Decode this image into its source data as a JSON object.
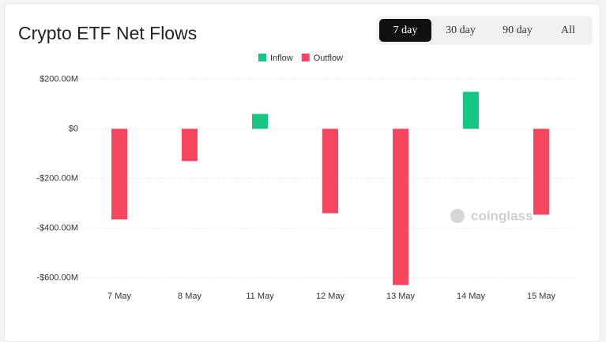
{
  "chart_data": {
    "type": "bar",
    "title": "Crypto ETF Net Flows",
    "buttons": [
      "7 day",
      "30 day",
      "90 day",
      "All"
    ],
    "active_button": 0,
    "watermark": "coinglass",
    "categories": [
      "7 May",
      "8 May",
      "11 May",
      "12 May",
      "13 May",
      "14 May",
      "15 May"
    ],
    "series": [
      {
        "name": "Inflow",
        "color": "#16c784",
        "values": [
          null,
          null,
          60000000,
          null,
          null,
          149000000,
          null
        ]
      },
      {
        "name": "Outflow",
        "color": "#f6465d",
        "values": [
          -365000000,
          -130000000,
          null,
          -340000000,
          -629000000,
          null,
          -346000000
        ]
      }
    ],
    "ylim": [
      -630000000,
      215000000
    ],
    "yticks": [
      {
        "value": -600000000,
        "label": "-$600.00M"
      },
      {
        "value": -400000000,
        "label": "-$400.00M"
      },
      {
        "value": -200000000,
        "label": "-$200.00M"
      },
      {
        "value": 0,
        "label": "$0"
      },
      {
        "value": 200000000,
        "label": "$200.00M"
      }
    ],
    "grid": true
  }
}
